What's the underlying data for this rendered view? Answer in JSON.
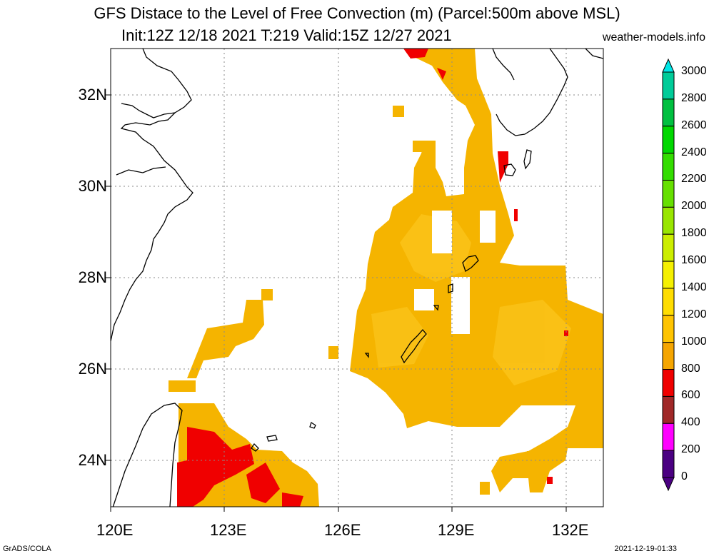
{
  "title": {
    "line1": "GFS Distace to the Level of Free Convection (m) (Parcel:500m above MSL)",
    "line2": "Init:12Z 12/18 2021 T:219 Valid:15Z 12/27 2021",
    "credit": "weather-models.info"
  },
  "axes": {
    "lat_labels": [
      "32N",
      "30N",
      "28N",
      "26N",
      "24N"
    ],
    "lon_labels": [
      "120E",
      "123E",
      "126E",
      "129E",
      "132E"
    ]
  },
  "colorbar": {
    "labels": [
      "3000",
      "2800",
      "2600",
      "2400",
      "2200",
      "2000",
      "1800",
      "1600",
      "1400",
      "1200",
      "1000",
      "800",
      "600",
      "400",
      "200",
      "0"
    ],
    "colors": [
      "#00e6e6",
      "#00cc99",
      "#00c040",
      "#00d800",
      "#33dd00",
      "#66e000",
      "#99e600",
      "#ccee00",
      "#f5f000",
      "#ffdd00",
      "#ffc400",
      "#f5a500",
      "#f00000",
      "#a02828",
      "#ff00ff",
      "#4b0082"
    ]
  },
  "field_colors": {
    "main": "#f5b400",
    "warm": "#fbc41a",
    "hot": "#f00000"
  },
  "footer": {
    "left": "GrADS/COLA",
    "right": "2021-12-19-01:33"
  }
}
